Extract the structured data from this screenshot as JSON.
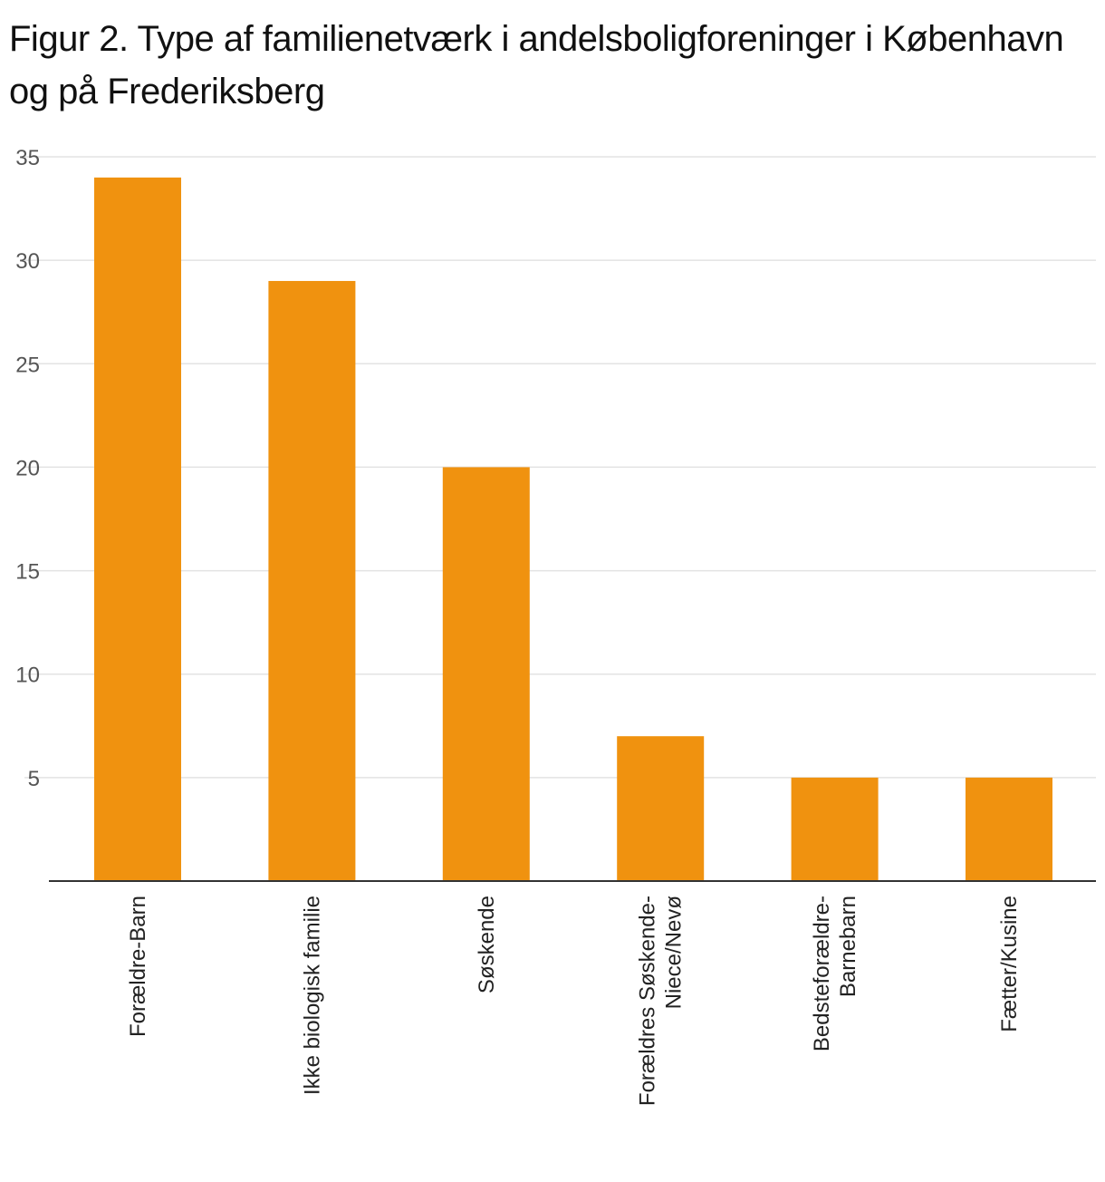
{
  "title": "Figur 2. Type af familienetværk i andelsboligforeninger i København og på Frederiksberg",
  "colors": {
    "bar": "#f0920f",
    "grid": "#e3e3e3",
    "axis": "#333333"
  },
  "chart_data": {
    "type": "bar",
    "title": "Figur 2. Type af familienetværk i andelsboligforeninger i København og på Frederiksberg",
    "xlabel": "",
    "ylabel": "",
    "ylim": [
      0,
      35
    ],
    "yticks": [
      5,
      10,
      15,
      20,
      25,
      30,
      35
    ],
    "grid": true,
    "categories": [
      [
        "Forældre-Barn"
      ],
      [
        "Ikke biologisk familie"
      ],
      [
        "Søskende"
      ],
      [
        "Forældres Søskende-",
        "Niece/Nevø"
      ],
      [
        "Bedsteforældre-",
        "Barnebarn"
      ],
      [
        "Fætter/Kusine"
      ]
    ],
    "values": [
      34,
      29,
      20,
      7,
      5,
      5
    ]
  }
}
